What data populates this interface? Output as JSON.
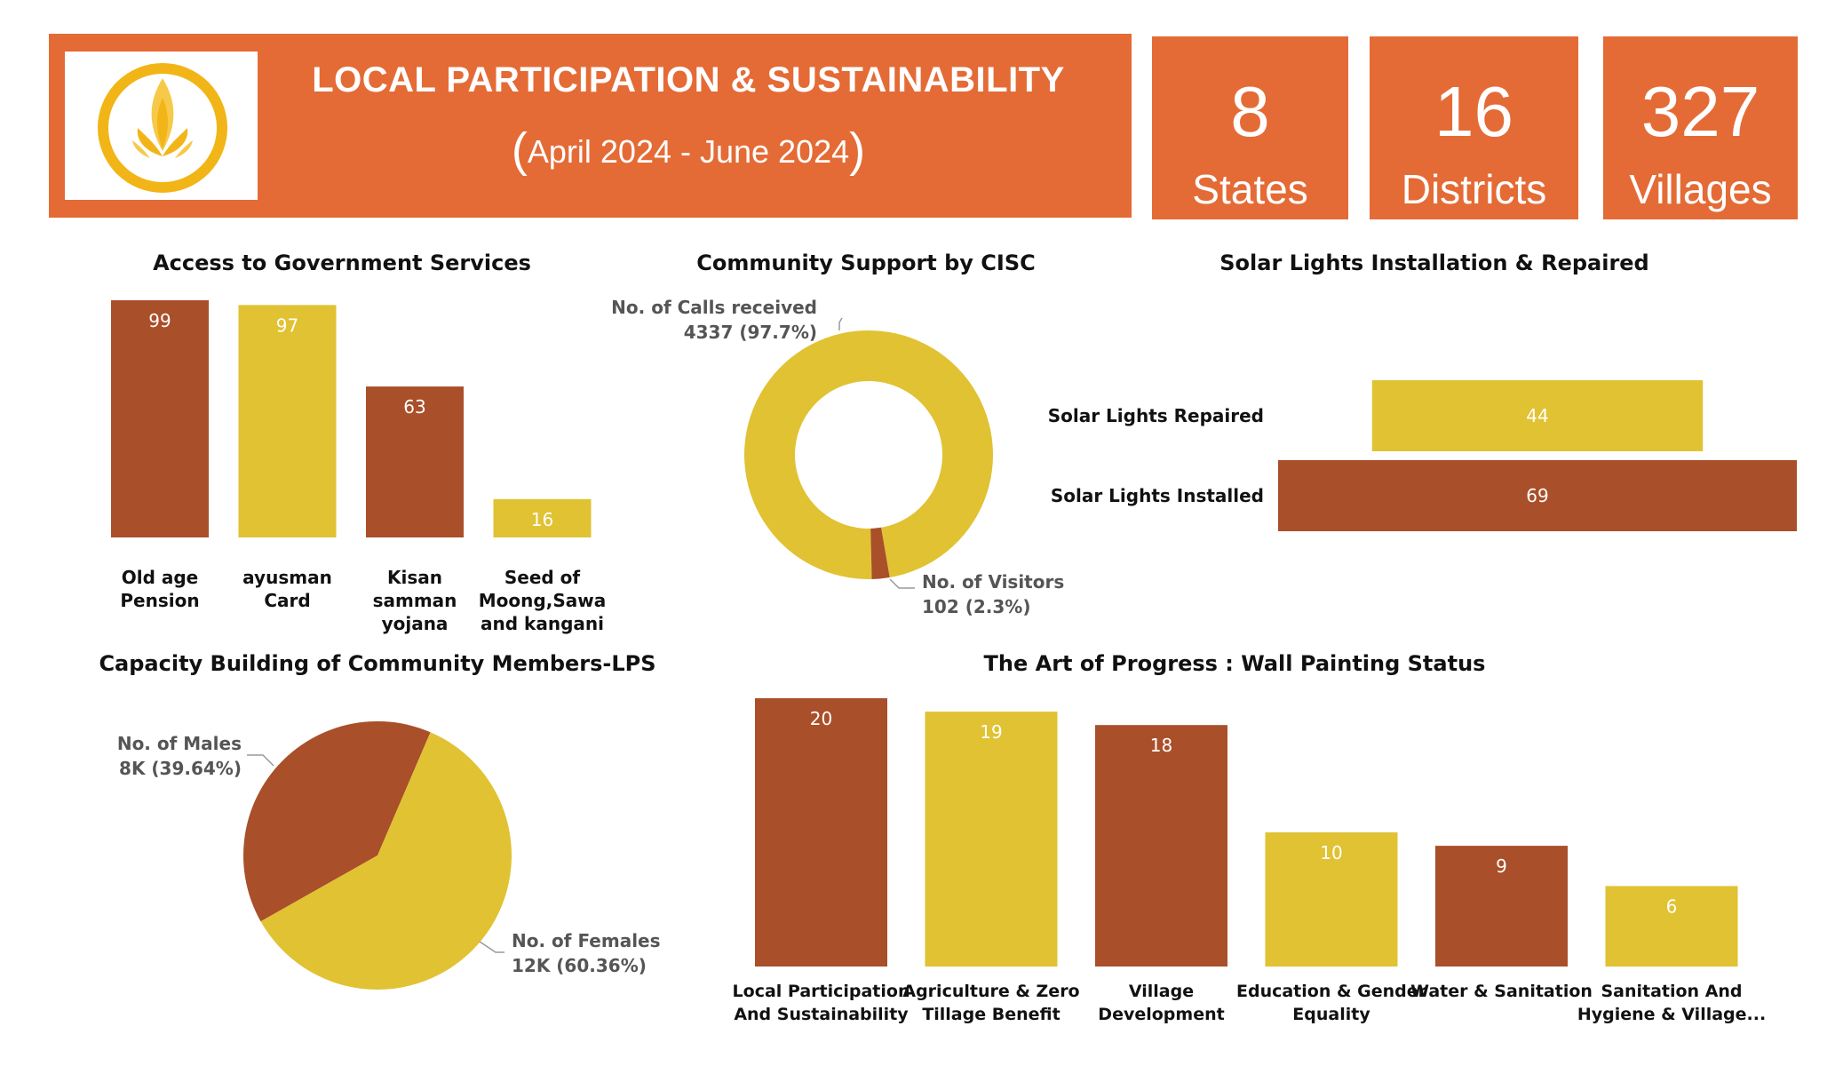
{
  "header": {
    "title": "LOCAL PARTICIPATION & SUSTAINABILITY",
    "date_open": "(",
    "date_range": "April 2024 - June 2024",
    "date_close": ")"
  },
  "kpis": [
    {
      "value": "8",
      "label": "States"
    },
    {
      "value": "16",
      "label": "Districts"
    },
    {
      "value": "327",
      "label": "Villages"
    }
  ],
  "colors": {
    "brown": "#A94F29",
    "yellow": "#E0C233",
    "orange": "#E46B36"
  },
  "chart_data": [
    {
      "id": "gov",
      "type": "bar",
      "title": "Access to Government Services",
      "categories": [
        [
          "Old age",
          "Pension"
        ],
        [
          "ayusman",
          "Card"
        ],
        [
          "Kisan",
          "samman",
          "yojana"
        ],
        [
          "Seed of",
          "Moong,Sawa",
          "and kangani"
        ]
      ],
      "values": [
        99,
        97,
        63,
        16
      ],
      "colors": [
        "#A94F29",
        "#E0C233",
        "#A94F29",
        "#E0C233"
      ],
      "ylim": [
        0,
        99
      ]
    },
    {
      "id": "cisc",
      "type": "pie",
      "title": "Community Support by CISC",
      "slices": [
        {
          "label": "No. of Calls received",
          "value": 4337,
          "display": "4337 (97.7%)",
          "color": "#E0C233"
        },
        {
          "label": "No. of Visitors",
          "value": 102,
          "display": "102 (2.3%)",
          "color": "#A94F29"
        }
      ],
      "donut": true
    },
    {
      "id": "solar",
      "type": "bar",
      "orientation": "horizontal",
      "title": "Solar Lights Installation & Repaired",
      "categories": [
        "Solar Lights Repaired",
        "Solar Lights Installed"
      ],
      "values": [
        44,
        69
      ],
      "colors": [
        "#E0C233",
        "#A94F29"
      ],
      "xlim": [
        0,
        69
      ]
    },
    {
      "id": "capacity",
      "type": "pie",
      "title": "Capacity Building of Community Members-LPS",
      "slices": [
        {
          "label": "No. of Males",
          "value": 39.64,
          "display": "8K (39.64%)",
          "color": "#A94F29"
        },
        {
          "label": "No. of Females",
          "value": 60.36,
          "display": "12K (60.36%)",
          "color": "#E0C233"
        }
      ]
    },
    {
      "id": "wall",
      "type": "bar",
      "title": "The Art of Progress : Wall Painting Status",
      "categories": [
        [
          "Local Participation",
          "And Sustainability"
        ],
        [
          "Agriculture & Zero",
          "Tillage Benefit"
        ],
        [
          "Village",
          "Development"
        ],
        [
          "Education & Gender",
          "Equality"
        ],
        [
          "Water & Sanitation"
        ],
        [
          "Sanitation And",
          "Hygiene & Village..."
        ]
      ],
      "values": [
        20,
        19,
        18,
        10,
        9,
        6
      ],
      "colors": [
        "#A94F29",
        "#E0C233",
        "#A94F29",
        "#E0C233",
        "#A94F29",
        "#E0C233"
      ],
      "ylim": [
        0,
        20
      ]
    }
  ]
}
